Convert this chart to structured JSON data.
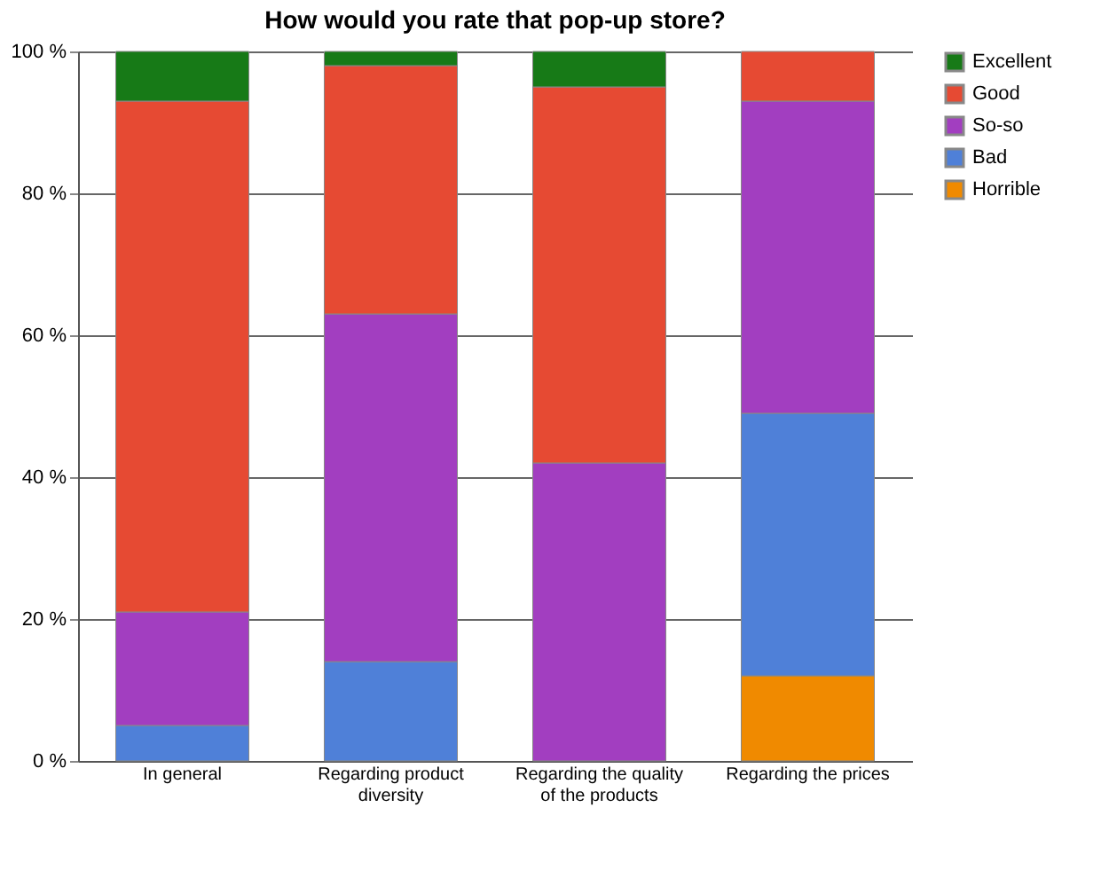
{
  "chart_data": {
    "type": "bar",
    "title": "How  would you rate that pop-up store?",
    "categories": [
      "In general",
      "Regarding product diversity",
      "Regarding the quality of the products",
      "Regarding the prices"
    ],
    "stacked": true,
    "series": [
      {
        "name": "Horrible",
        "color": "#f08a00",
        "values": [
          0,
          0,
          0,
          12
        ]
      },
      {
        "name": "Bad",
        "color": "#4f80d8",
        "values": [
          5,
          14,
          0,
          37
        ]
      },
      {
        "name": "So-so",
        "color": "#a23ec0",
        "values": [
          16,
          49,
          42,
          44
        ]
      },
      {
        "name": "Good",
        "color": "#e64a33",
        "values": [
          72,
          35,
          53,
          7
        ]
      },
      {
        "name": "Excellent",
        "color": "#177a17",
        "values": [
          7,
          2,
          5,
          0
        ]
      }
    ],
    "ylim": [
      0,
      100
    ],
    "yticks": [
      {
        "value": 0,
        "label": "0 %"
      },
      {
        "value": 20,
        "label": "20 %"
      },
      {
        "value": 40,
        "label": "40 %"
      },
      {
        "value": 60,
        "label": "60 %"
      },
      {
        "value": 80,
        "label": "80 %"
      },
      {
        "value": 100,
        "label": "100 %"
      }
    ],
    "grid": "y",
    "legend": "right"
  }
}
